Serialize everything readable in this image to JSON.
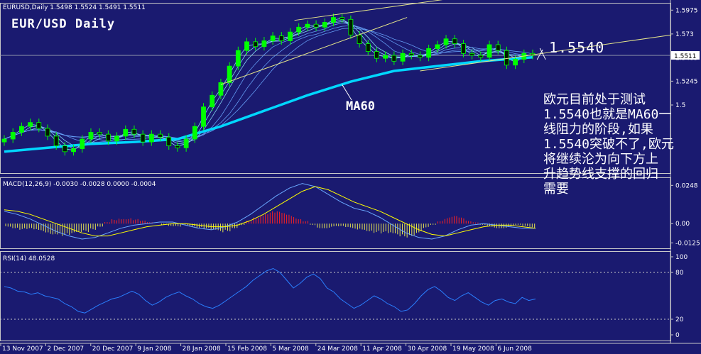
{
  "window": {
    "symbol_header": "EURUSD,Daily",
    "ohlc": "1.5498 1.5524 1.5491 1.5511"
  },
  "annotations": {
    "chart_title": "EUR/USD Daily",
    "ma_label": "MA60",
    "level_label": "1.5540",
    "note_lines": [
      "欧元目前处于测试",
      "1.5540也就是MA60一",
      "线阻力的阶段,如果",
      "1.5540突破不了,欧元",
      "将继续沦为向下方上",
      "升趋势线支撑的回归",
      "需要"
    ]
  },
  "macd_header": "MACD(12,26,9) -0.0030 -0.0028 0.0000 -0.0004",
  "rsi_header": "RSI(14) 48.0528",
  "colors": {
    "background": "#1a1a70",
    "up_candle": "#00ff00",
    "ma_line": "#00d7ff",
    "trend_line": "#e6e68a",
    "macd_pos": "#ff2020",
    "macd_neg": "#e6e650",
    "signal": "#ffff00",
    "rsi": "#2a7fff"
  },
  "chart_data": [
    {
      "type": "line",
      "name_text": "EURUSD,Daily",
      "title": "EUR/USD Daily",
      "x_tick_labels": [
        "13 Nov 2007",
        "2 Dec 2007",
        "20 Dec 2007",
        "9 Jan 2008",
        "28 Jan 2008",
        "15 Feb 2008",
        "5 Mar 2008",
        "24 Mar 2008",
        "11 Apr 2008",
        "30 Apr 2008",
        "19 May 2008",
        "6 Jun 2008"
      ],
      "y_ticks": [
        1.5975,
        1.573,
        1.5485,
        1.5245,
        1.5
      ],
      "last_price_label": "1.5511",
      "ylim": [
        1.43,
        1.605
      ],
      "close_points": [
        [
          0,
          1.465
        ],
        [
          2,
          1.472
        ],
        [
          4,
          1.478
        ],
        [
          6,
          1.482
        ],
        [
          8,
          1.476
        ],
        [
          10,
          1.468
        ],
        [
          12,
          1.458
        ],
        [
          14,
          1.452
        ],
        [
          16,
          1.455
        ],
        [
          18,
          1.465
        ],
        [
          20,
          1.472
        ],
        [
          22,
          1.47
        ],
        [
          24,
          1.463
        ],
        [
          26,
          1.468
        ],
        [
          28,
          1.475
        ],
        [
          30,
          1.47
        ],
        [
          32,
          1.462
        ],
        [
          34,
          1.47
        ],
        [
          36,
          1.467
        ],
        [
          38,
          1.458
        ],
        [
          40,
          1.456
        ],
        [
          42,
          1.465
        ],
        [
          44,
          1.478
        ],
        [
          46,
          1.498
        ],
        [
          48,
          1.51
        ],
        [
          50,
          1.523
        ],
        [
          52,
          1.54
        ],
        [
          54,
          1.556
        ],
        [
          56,
          1.565
        ],
        [
          58,
          1.56
        ],
        [
          60,
          1.566
        ],
        [
          62,
          1.571
        ],
        [
          64,
          1.566
        ],
        [
          66,
          1.575
        ],
        [
          68,
          1.58
        ],
        [
          70,
          1.583
        ],
        [
          72,
          1.58
        ],
        [
          74,
          1.585
        ],
        [
          76,
          1.59
        ],
        [
          78,
          1.588
        ],
        [
          80,
          1.572
        ],
        [
          82,
          1.563
        ],
        [
          84,
          1.555
        ],
        [
          86,
          1.548
        ],
        [
          88,
          1.551
        ],
        [
          90,
          1.545
        ],
        [
          92,
          1.553
        ],
        [
          94,
          1.551
        ],
        [
          96,
          1.549
        ],
        [
          98,
          1.558
        ],
        [
          100,
          1.562
        ],
        [
          102,
          1.568
        ],
        [
          104,
          1.563
        ],
        [
          106,
          1.553
        ],
        [
          108,
          1.551
        ],
        [
          110,
          1.549
        ],
        [
          112,
          1.562
        ],
        [
          114,
          1.556
        ],
        [
          116,
          1.541
        ],
        [
          118,
          1.547
        ],
        [
          120,
          1.553
        ],
        [
          122,
          1.551
        ]
      ],
      "ma60_points": [
        [
          0,
          1.452
        ],
        [
          10,
          1.456
        ],
        [
          20,
          1.46
        ],
        [
          30,
          1.462
        ],
        [
          40,
          1.465
        ],
        [
          50,
          1.478
        ],
        [
          60,
          1.494
        ],
        [
          70,
          1.51
        ],
        [
          80,
          1.524
        ],
        [
          90,
          1.535
        ],
        [
          100,
          1.54
        ],
        [
          110,
          1.545
        ],
        [
          122,
          1.549
        ]
      ],
      "level": 1.554
    },
    {
      "type": "bar",
      "title": "MACD(12,26,9)",
      "y_ticks": [
        0.0248,
        0.0,
        -0.0125
      ],
      "ylim": [
        -0.016,
        0.03
      ],
      "histogram": [
        -0.002,
        -0.003,
        -0.004,
        -0.004,
        -0.005,
        -0.006,
        -0.007,
        -0.007,
        -0.008,
        -0.008,
        -0.007,
        -0.006,
        -0.004,
        -0.002,
        0.001,
        0.003,
        0.004,
        0.004,
        0.003,
        0.002,
        0.001,
        0.0,
        -0.001,
        -0.002,
        -0.002,
        -0.001,
        -0.002,
        -0.003,
        -0.004,
        -0.005,
        -0.006,
        -0.005,
        -0.003,
        -0.001,
        0.002,
        0.005,
        0.007,
        0.008,
        0.008,
        0.007,
        0.006,
        0.004,
        0.002,
        -0.001,
        -0.003,
        -0.003,
        -0.002,
        -0.002,
        -0.003,
        -0.004,
        -0.004,
        -0.005,
        -0.006,
        -0.007,
        -0.008,
        -0.009,
        -0.009,
        -0.008,
        -0.006,
        -0.003,
        -0.001,
        0.002,
        0.004,
        0.005,
        0.004,
        0.002,
        0.001,
        -0.001,
        -0.002,
        -0.003,
        -0.003,
        -0.002,
        -0.001,
        -0.002,
        -0.003
      ],
      "macd_line": [
        0.008,
        0.006,
        0.003,
        -0.001,
        -0.005,
        -0.008,
        -0.01,
        -0.009,
        -0.006,
        -0.003,
        -0.001,
        0.0,
        0.001,
        0.001,
        -0.001,
        -0.003,
        -0.004,
        -0.002,
        0.001,
        0.006,
        0.012,
        0.018,
        0.023,
        0.026,
        0.024,
        0.019,
        0.014,
        0.01,
        0.008,
        0.004,
        -0.001,
        -0.006,
        -0.009,
        -0.01,
        -0.008,
        -0.004,
        -0.001,
        0.0,
        -0.001,
        -0.002,
        -0.003,
        -0.003
      ],
      "signal_line": [
        0.009,
        0.008,
        0.006,
        0.003,
        0.0,
        -0.003,
        -0.006,
        -0.008,
        -0.008,
        -0.006,
        -0.004,
        -0.002,
        -0.001,
        0.0,
        0.0,
        -0.001,
        -0.002,
        -0.002,
        -0.001,
        0.002,
        0.006,
        0.011,
        0.016,
        0.021,
        0.024,
        0.022,
        0.018,
        0.014,
        0.011,
        0.008,
        0.004,
        0.0,
        -0.004,
        -0.007,
        -0.008,
        -0.006,
        -0.004,
        -0.002,
        -0.001,
        -0.001,
        -0.002,
        -0.003
      ]
    },
    {
      "type": "line",
      "title": "RSI(14)",
      "y_ticks": [
        100,
        80,
        20,
        0
      ],
      "ylim": [
        0,
        100
      ],
      "values": [
        62,
        60,
        56,
        55,
        52,
        54,
        50,
        48,
        46,
        40,
        36,
        30,
        28,
        33,
        38,
        42,
        46,
        48,
        52,
        56,
        52,
        44,
        38,
        42,
        48,
        52,
        55,
        50,
        46,
        40,
        36,
        34,
        38,
        44,
        50,
        56,
        62,
        70,
        76,
        82,
        85,
        80,
        70,
        60,
        66,
        74,
        78,
        72,
        60,
        55,
        46,
        40,
        34,
        38,
        44,
        50,
        46,
        40,
        36,
        30,
        32,
        40,
        50,
        58,
        62,
        56,
        48,
        44,
        50,
        54,
        48,
        42,
        38,
        44,
        46,
        42,
        40,
        48,
        44,
        46
      ]
    }
  ]
}
